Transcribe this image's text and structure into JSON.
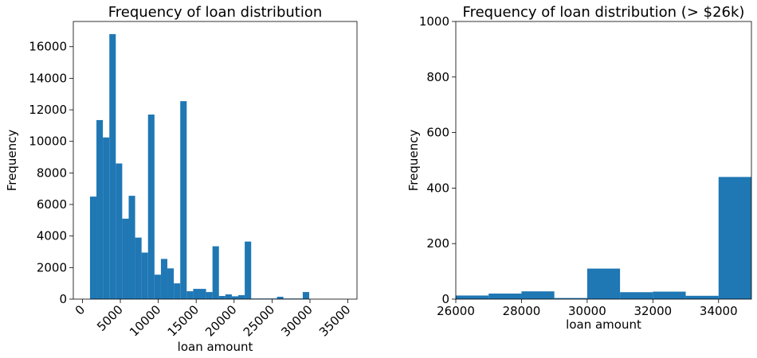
{
  "chart_data": [
    {
      "type": "bar",
      "title": "Frequency of loan distribution",
      "xlabel": "loan amount",
      "ylabel": "Frequency",
      "xlim": [
        -1200,
        36200
      ],
      "ylim": [
        0,
        17600
      ],
      "xticks": [
        0,
        5000,
        10000,
        15000,
        20000,
        25000,
        30000,
        35000
      ],
      "xtick_labels": [
        "0",
        "5000",
        "10000",
        "15000",
        "20000",
        "25000",
        "30000",
        "35000"
      ],
      "yticks": [
        0,
        2000,
        4000,
        6000,
        8000,
        10000,
        12000,
        14000,
        16000
      ],
      "ytick_labels": [
        "0",
        "2000",
        "4000",
        "6000",
        "8000",
        "10000",
        "12000",
        "14000",
        "16000"
      ],
      "xtick_rotation": -45,
      "bar_color": "#1f77b4",
      "bins": [
        {
          "x0": 1000,
          "x1": 1850,
          "value": 6500
        },
        {
          "x0": 1850,
          "x1": 2700,
          "value": 11350
        },
        {
          "x0": 2700,
          "x1": 3550,
          "value": 10250
        },
        {
          "x0": 3550,
          "x1": 4400,
          "value": 16800
        },
        {
          "x0": 4400,
          "x1": 5250,
          "value": 8600
        },
        {
          "x0": 5250,
          "x1": 6100,
          "value": 5100
        },
        {
          "x0": 6100,
          "x1": 6950,
          "value": 6550
        },
        {
          "x0": 6950,
          "x1": 7800,
          "value": 3900
        },
        {
          "x0": 7800,
          "x1": 8650,
          "value": 2950
        },
        {
          "x0": 8650,
          "x1": 9500,
          "value": 11700
        },
        {
          "x0": 9500,
          "x1": 10350,
          "value": 1550
        },
        {
          "x0": 10350,
          "x1": 11200,
          "value": 2550
        },
        {
          "x0": 11200,
          "x1": 12050,
          "value": 1950
        },
        {
          "x0": 12050,
          "x1": 12900,
          "value": 1000
        },
        {
          "x0": 12900,
          "x1": 13750,
          "value": 12550
        },
        {
          "x0": 13750,
          "x1": 14600,
          "value": 500
        },
        {
          "x0": 14600,
          "x1": 15450,
          "value": 650
        },
        {
          "x0": 15450,
          "x1": 16300,
          "value": 650
        },
        {
          "x0": 16300,
          "x1": 17150,
          "value": 450
        },
        {
          "x0": 17150,
          "x1": 18000,
          "value": 3350
        },
        {
          "x0": 18000,
          "x1": 18850,
          "value": 200
        },
        {
          "x0": 18850,
          "x1": 19700,
          "value": 300
        },
        {
          "x0": 19700,
          "x1": 20550,
          "value": 180
        },
        {
          "x0": 20550,
          "x1": 21400,
          "value": 250
        },
        {
          "x0": 21400,
          "x1": 22250,
          "value": 3650
        },
        {
          "x0": 22250,
          "x1": 23100,
          "value": 40
        },
        {
          "x0": 23100,
          "x1": 23950,
          "value": 40
        },
        {
          "x0": 23950,
          "x1": 24800,
          "value": 40
        },
        {
          "x0": 24800,
          "x1": 25650,
          "value": 40
        },
        {
          "x0": 25650,
          "x1": 26500,
          "value": 150
        },
        {
          "x0": 26500,
          "x1": 27350,
          "value": 40
        },
        {
          "x0": 27350,
          "x1": 28200,
          "value": 40
        },
        {
          "x0": 28200,
          "x1": 29050,
          "value": 40
        },
        {
          "x0": 29050,
          "x1": 29900,
          "value": 450
        }
      ]
    },
    {
      "type": "bar",
      "title": "Frequency of loan distribution (> $26k)",
      "xlabel": "loan amount",
      "ylabel": "Frequency",
      "xlim": [
        26000,
        35000
      ],
      "ylim": [
        0,
        1000
      ],
      "xticks": [
        26000,
        28000,
        30000,
        32000,
        34000
      ],
      "xtick_labels": [
        "26000",
        "28000",
        "30000",
        "32000",
        "34000"
      ],
      "yticks": [
        0,
        200,
        400,
        600,
        800,
        1000
      ],
      "ytick_labels": [
        "0",
        "200",
        "400",
        "600",
        "800",
        "1000"
      ],
      "bar_color": "#1f77b4",
      "bins": [
        {
          "x0": 26000,
          "x1": 27000,
          "value": 13
        },
        {
          "x0": 27000,
          "x1": 28000,
          "value": 20
        },
        {
          "x0": 28000,
          "x1": 29000,
          "value": 28
        },
        {
          "x0": 29000,
          "x1": 30000,
          "value": 4
        },
        {
          "x0": 30000,
          "x1": 31000,
          "value": 110
        },
        {
          "x0": 31000,
          "x1": 32000,
          "value": 25
        },
        {
          "x0": 32000,
          "x1": 33000,
          "value": 27
        },
        {
          "x0": 33000,
          "x1": 34000,
          "value": 12
        },
        {
          "x0": 34000,
          "x1": 35000,
          "value": 440
        }
      ]
    }
  ]
}
